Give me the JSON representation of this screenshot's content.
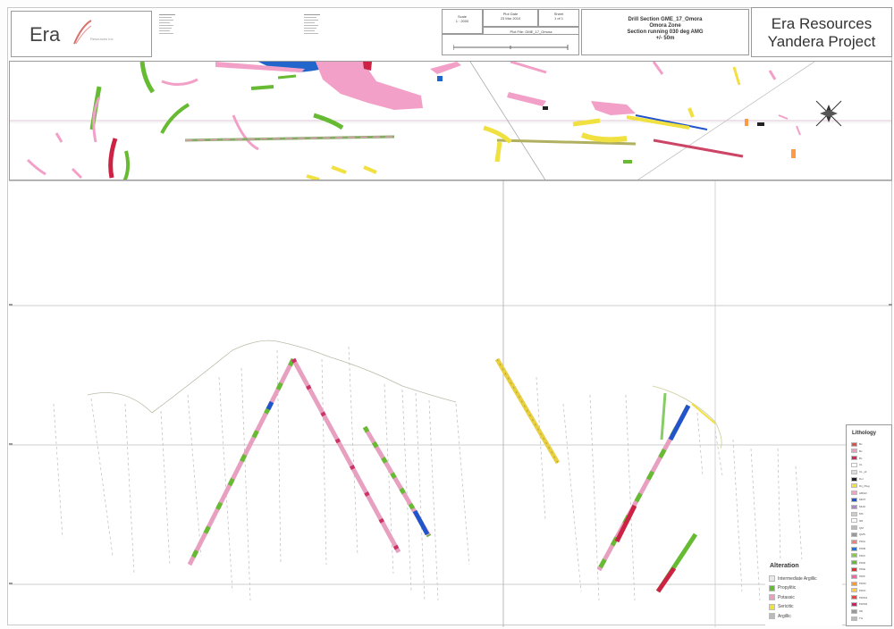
{
  "logo": {
    "text": "Era",
    "tagline": "Resources Inc"
  },
  "title_block": {
    "scale_label": "Scale",
    "scale_value": "1 : 2000",
    "plot_date_label": "Plot Date",
    "plot_date_value": "23 Mar 2010",
    "sheet_label": "Sheet",
    "sheet_value": "1 of 1",
    "plot_file": "Plot File: GME_17_Omora",
    "section_lines": [
      "Drill Section GME_17_Omora",
      "Omora Zone",
      "Section running 030 deg AMG",
      "+/- 50m"
    ],
    "project_lines": [
      "Era Resources",
      "Yandera Project"
    ]
  },
  "lithology_legend": {
    "title": "Lithology",
    "items": [
      {
        "label": "Bx",
        "color": "#d9534f"
      },
      {
        "label": "Bx",
        "color": "#e8a0c0"
      },
      {
        "label": "Bx",
        "color": "#c93060"
      },
      {
        "label": "CL",
        "color": "#ffffff"
      },
      {
        "label": "CL_sil",
        "color": "#dddddd"
      },
      {
        "label": "Dol",
        "color": "#222222"
      },
      {
        "label": "Drj_Plag",
        "color": "#f0e040"
      },
      {
        "label": "HBGR",
        "color": "#f2a0c8"
      },
      {
        "label": "MDIT",
        "color": "#2255cc"
      },
      {
        "label": "MLDI",
        "color": "#aa88cc"
      },
      {
        "label": "MS",
        "color": "#cccccc"
      },
      {
        "label": "NR",
        "color": "#ffffff"
      },
      {
        "label": "QM",
        "color": "#bbbbbb"
      },
      {
        "label": "QMS",
        "color": "#999999"
      },
      {
        "label": "PDIA",
        "color": "#f08080"
      },
      {
        "label": "PDIB",
        "color": "#2277dd"
      },
      {
        "label": "PDIC",
        "color": "#88cc44"
      },
      {
        "label": "PDID",
        "color": "#66bb33"
      },
      {
        "label": "PDIE",
        "color": "#dd3333"
      },
      {
        "label": "PDIF",
        "color": "#ee66aa"
      },
      {
        "label": "PDIM",
        "color": "#ff9933"
      },
      {
        "label": "PDIO",
        "color": "#ffcc44"
      },
      {
        "label": "PDIM1",
        "color": "#ee4444"
      },
      {
        "label": "PDIM2",
        "color": "#cc2266"
      },
      {
        "label": "SD",
        "color": "#999999"
      },
      {
        "label": "TG",
        "color": "#bbbbbb"
      }
    ]
  },
  "alteration_legend": {
    "title": "Alteration",
    "items": [
      {
        "label": "Intermediate Argillic",
        "color": "#e8e8e8"
      },
      {
        "label": "Propylitic",
        "color": "#66bb33"
      },
      {
        "label": "Potassic",
        "color": "#e8a0c0"
      },
      {
        "label": "Sericitic",
        "color": "#f0e040"
      },
      {
        "label": "Argillic",
        "color": "#bbbbbb"
      }
    ]
  },
  "colors": {
    "pink": "#f2a0c8",
    "green": "#66bb33",
    "yellow": "#f0e040",
    "blue": "#2255cc",
    "red": "#cc2244",
    "grid": "#b8b8b8"
  }
}
